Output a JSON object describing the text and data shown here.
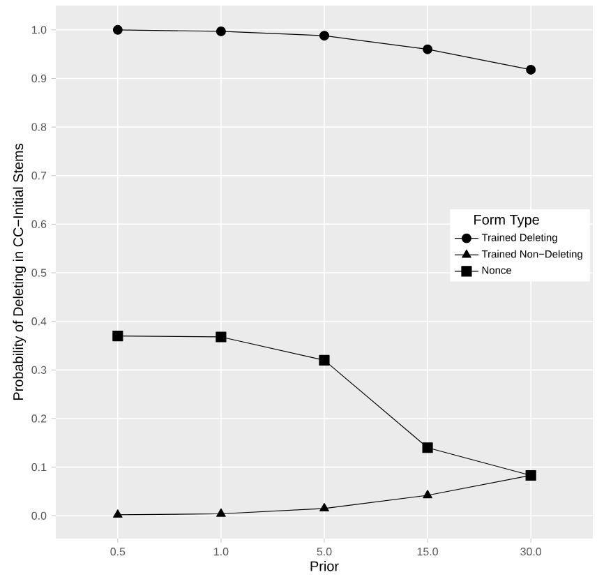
{
  "chart_data": {
    "type": "line",
    "xlabel": "Prior",
    "ylabel": "Probability of Deleting in CC−Initial Stems",
    "legend_title": "Form Type",
    "categories": [
      "0.5",
      "1.0",
      "5.0",
      "15.0",
      "30.0"
    ],
    "series": [
      {
        "name": "Trained Deleting",
        "color": "#000000",
        "marker": "circle",
        "values": [
          1.0,
          0.997,
          0.988,
          0.96,
          0.918
        ]
      },
      {
        "name": "Trained Non−Deleting",
        "color": "#000000",
        "marker": "triangle",
        "values": [
          0.002,
          0.004,
          0.015,
          0.042,
          0.083
        ]
      },
      {
        "name": "Nonce",
        "color": "#000000",
        "marker": "square",
        "values": [
          0.37,
          0.368,
          0.32,
          0.14,
          0.083
        ]
      }
    ],
    "ylim": [
      -0.047,
      1.05
    ],
    "yticks": [
      {
        "value": 0,
        "label": "0.0"
      },
      {
        "value": 0.1,
        "label": "0.1"
      },
      {
        "value": 0.2,
        "label": "0.2"
      },
      {
        "value": 0.3,
        "label": "0.3"
      },
      {
        "value": 0.4,
        "label": "0.4"
      },
      {
        "value": 0.5,
        "label": "0.5"
      },
      {
        "value": 0.6,
        "label": "0.6"
      },
      {
        "value": 0.7,
        "label": "0.7"
      },
      {
        "value": 0.8,
        "label": "0.8"
      },
      {
        "value": 0.9,
        "label": "0.9"
      },
      {
        "value": 1.0,
        "label": "1.0"
      }
    ],
    "grid": true,
    "legend": "right",
    "line_style": "solid"
  }
}
